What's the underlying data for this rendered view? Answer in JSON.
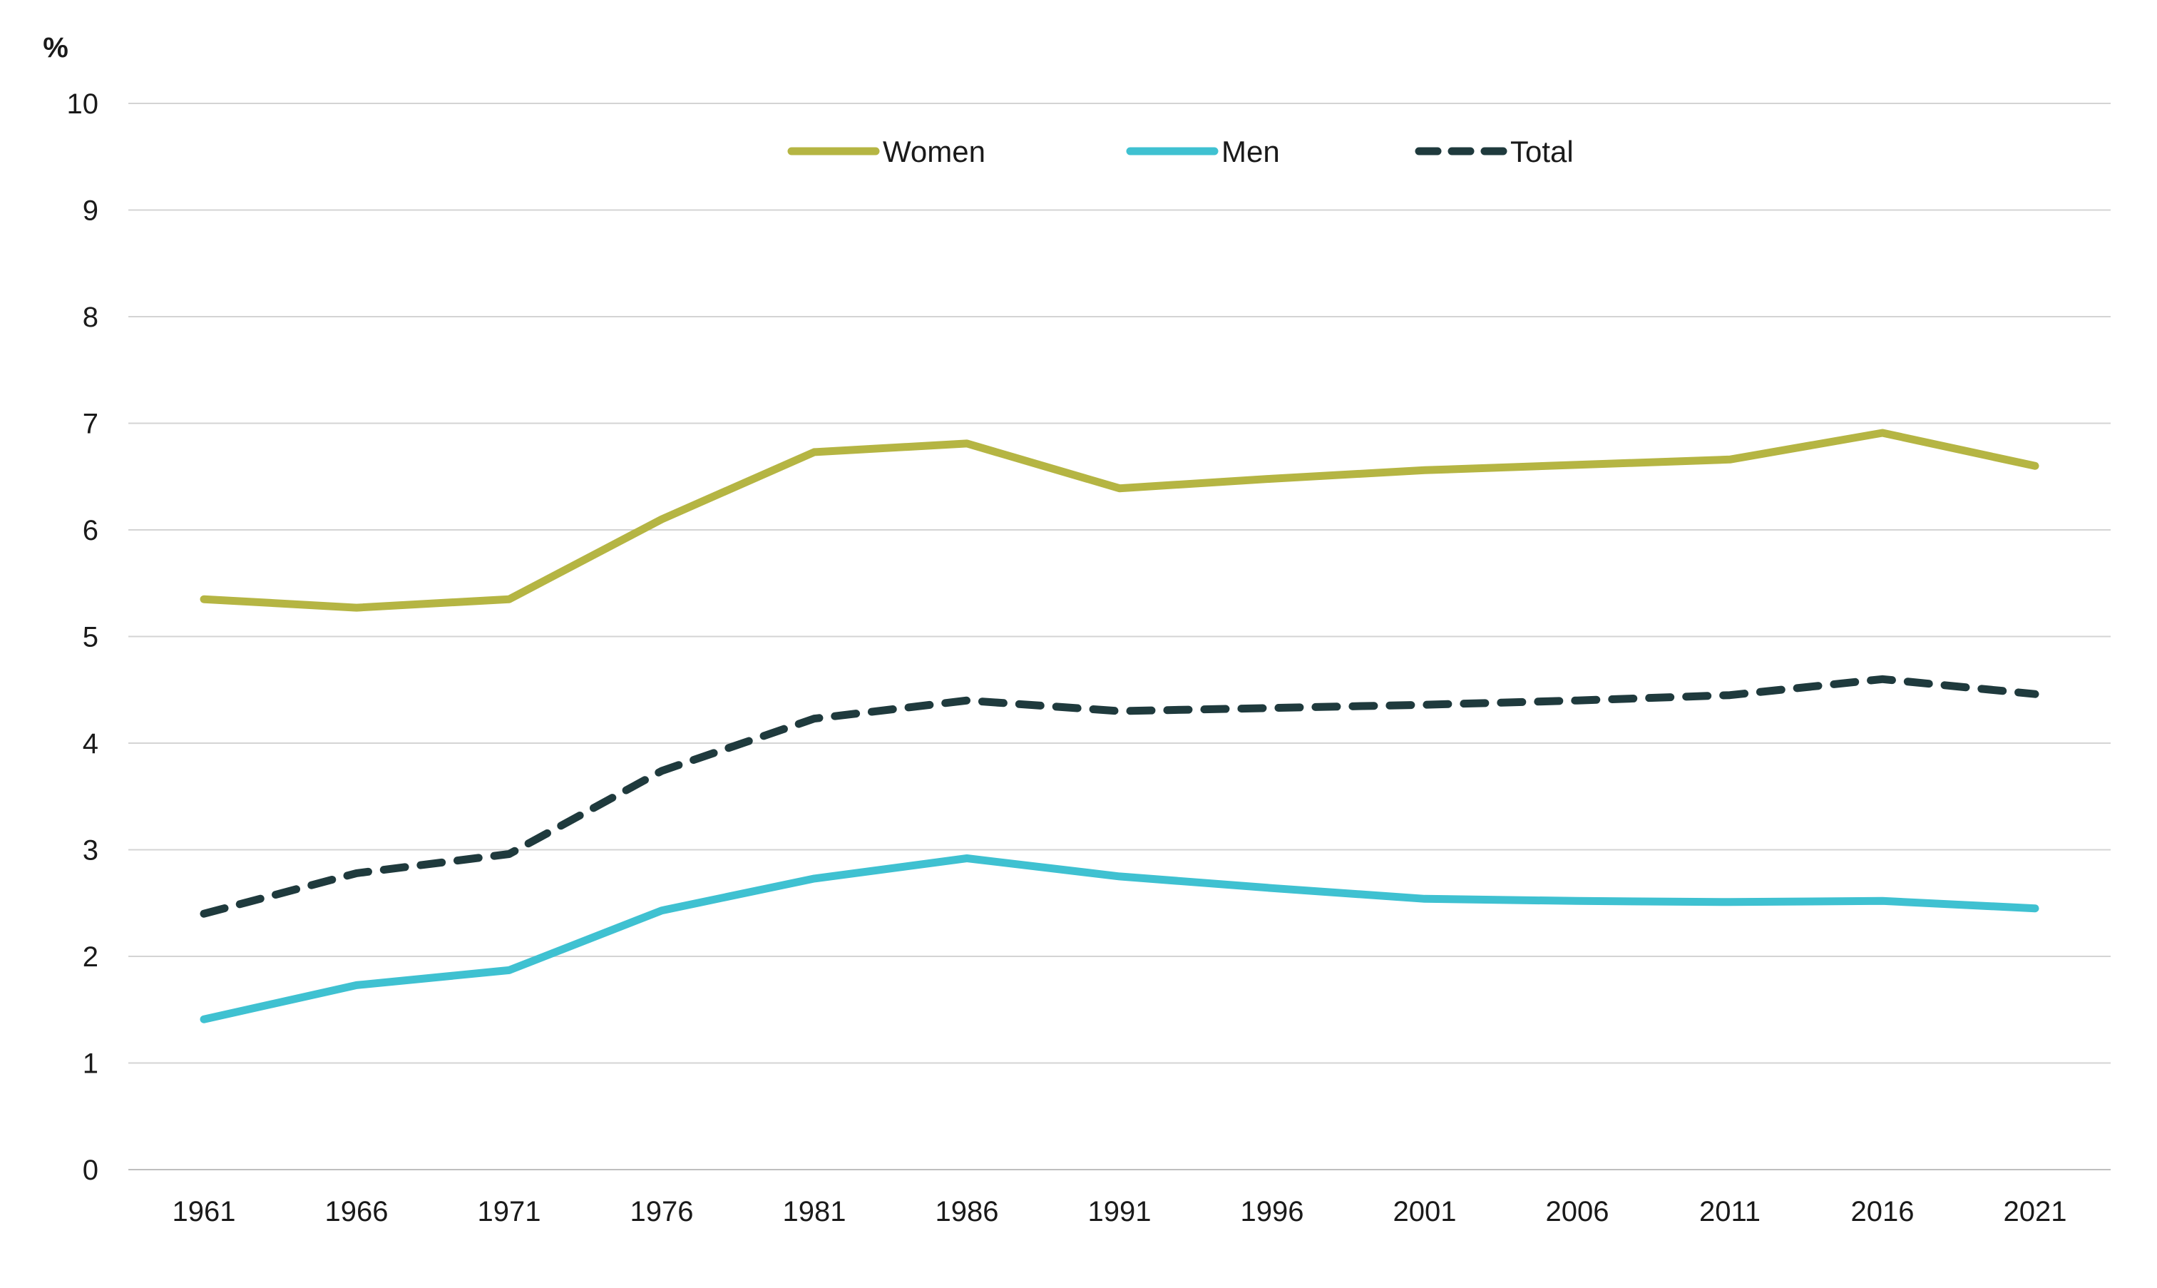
{
  "chart_data": {
    "type": "line",
    "title": "",
    "xlabel": "",
    "ylabel": "%",
    "ylim": [
      0,
      10
    ],
    "yticks": [
      "0",
      "1",
      "2",
      "3",
      "4",
      "5",
      "6",
      "7",
      "8",
      "9",
      "10"
    ],
    "grid": true,
    "legend_position": "top-center",
    "categories": [
      "1961",
      "1966",
      "1971",
      "1976",
      "1981",
      "1986",
      "1991",
      "1996",
      "2001",
      "2006",
      "2011",
      "2016",
      "2021"
    ],
    "series": [
      {
        "name": "Women",
        "color": "#B5B543",
        "style": "solid",
        "values": [
          5.35,
          5.27,
          5.35,
          6.1,
          6.73,
          6.81,
          6.39,
          6.48,
          6.56,
          6.61,
          6.66,
          6.91,
          6.6
        ]
      },
      {
        "name": "Men",
        "color": "#3FC1D1",
        "style": "solid",
        "values": [
          1.41,
          1.73,
          1.87,
          2.43,
          2.73,
          2.92,
          2.75,
          2.64,
          2.54,
          2.52,
          2.51,
          2.52,
          2.45
        ]
      },
      {
        "name": "Total",
        "color": "#1F3A3D",
        "style": "dashed",
        "values": [
          2.4,
          2.78,
          2.96,
          3.74,
          4.23,
          4.4,
          4.3,
          4.33,
          4.36,
          4.4,
          4.45,
          4.6,
          4.46
        ]
      }
    ]
  }
}
